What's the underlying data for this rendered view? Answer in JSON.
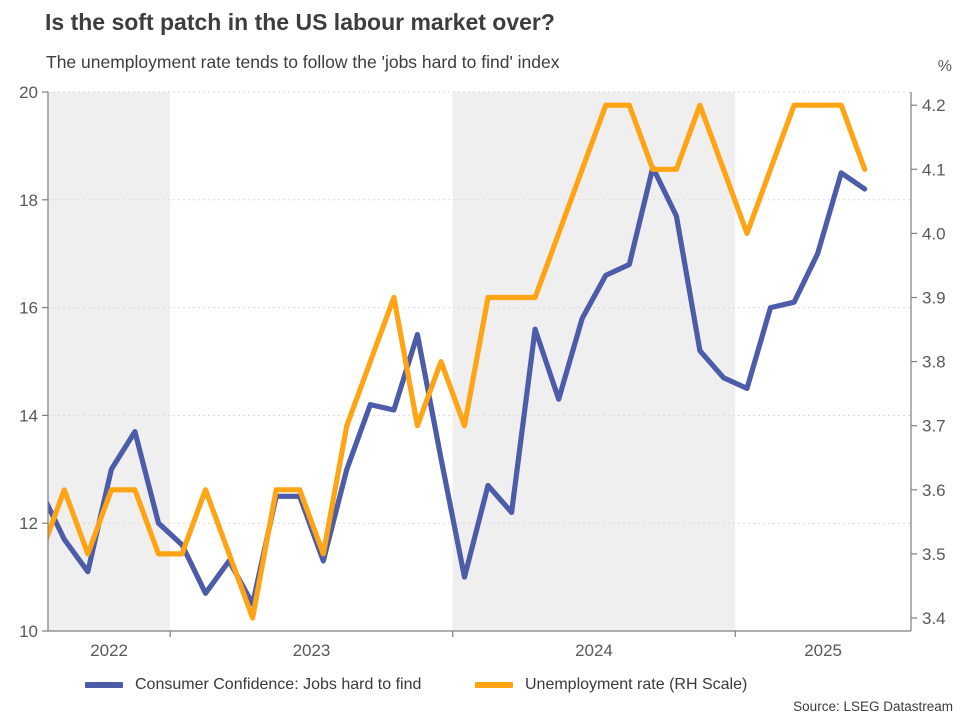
{
  "header": {
    "title": "Is the soft patch in the US labour market over?",
    "subtitle": "The unemployment rate tends to follow the 'jobs hard to find' index",
    "right_axis_unit": "%"
  },
  "legend": {
    "items": [
      {
        "label": "Consumer Confidence: Jobs hard to find",
        "color": "#4d5ca8"
      },
      {
        "label": "Unemployment rate (RH Scale)",
        "color": "#ffa414"
      }
    ]
  },
  "footer": {
    "source": "Source: LSEG Datastream"
  },
  "chart_data": {
    "type": "line",
    "title": "Is the soft patch in the US labour market over?",
    "subtitle": "The unemployment rate tends to follow the 'jobs hard to find' index",
    "months": [
      "2022-07",
      "2022-08",
      "2022-09",
      "2022-10",
      "2022-11",
      "2022-12",
      "2023-01",
      "2023-02",
      "2023-03",
      "2023-04",
      "2023-05",
      "2023-06",
      "2023-07",
      "2023-08",
      "2023-09",
      "2023-10",
      "2023-11",
      "2023-12",
      "2024-01",
      "2024-02",
      "2024-03",
      "2024-04",
      "2024-05",
      "2024-06",
      "2024-07",
      "2024-08",
      "2024-09",
      "2024-10",
      "2024-11",
      "2024-12",
      "2025-01",
      "2025-02",
      "2025-03",
      "2025-04",
      "2025-05",
      "2025-06"
    ],
    "series": [
      {
        "name": "Consumer Confidence: Jobs hard to find",
        "axis": "left",
        "color": "#4d5ca8",
        "values": [
          12.6,
          11.7,
          11.1,
          13.0,
          13.7,
          12.0,
          11.6,
          10.7,
          11.3,
          10.5,
          12.5,
          12.5,
          11.3,
          13.0,
          14.2,
          14.1,
          15.5,
          13.2,
          11.0,
          12.7,
          12.2,
          15.6,
          14.3,
          15.8,
          16.6,
          16.8,
          18.6,
          17.7,
          15.2,
          14.7,
          14.5,
          16.0,
          16.1,
          17.0,
          18.5,
          18.2
        ]
      },
      {
        "name": "Unemployment rate (RH Scale)",
        "axis": "right",
        "color": "#ffa414",
        "values": [
          3.5,
          3.6,
          3.5,
          3.6,
          3.6,
          3.5,
          3.5,
          3.6,
          3.5,
          3.4,
          3.6,
          3.6,
          3.5,
          3.7,
          3.8,
          3.9,
          3.7,
          3.8,
          3.7,
          3.9,
          3.9,
          3.9,
          4.0,
          4.1,
          4.2,
          4.2,
          4.1,
          4.1,
          4.2,
          4.1,
          4.0,
          4.1,
          4.2,
          4.2,
          4.2,
          4.1
        ]
      }
    ],
    "left_axis": {
      "min": 10,
      "max": 20,
      "ticks": [
        10,
        12,
        14,
        16,
        18,
        20
      ]
    },
    "right_axis": {
      "min": 3.4,
      "max": 4.2,
      "ticks": [
        3.4,
        3.5,
        3.6,
        3.7,
        3.8,
        3.9,
        4.0,
        4.1,
        4.2
      ],
      "unit": "%"
    },
    "x_year_labels": [
      "2022",
      "2023",
      "2024",
      "2025"
    ],
    "shaded_years": [
      "2022",
      "2024"
    ],
    "grid": "dotted-horizontal",
    "legend_position": "bottom",
    "band_color": "#efefef",
    "grid_color": "#d9d9d9",
    "axis_line_color": "#7f7f7f",
    "axis_text_color": "#595959"
  }
}
